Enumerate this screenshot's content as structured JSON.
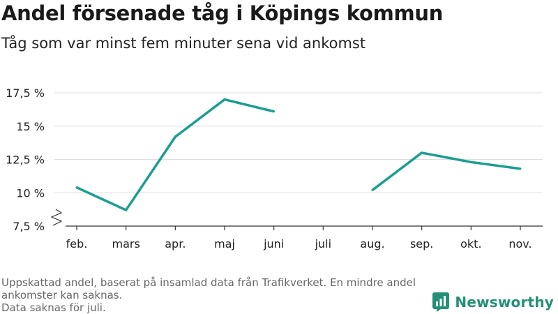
{
  "title": "Andel försenade tåg i Köpings kommun",
  "subtitle": "Tåg som var minst fem minuter sena vid ankomst",
  "footer": {
    "note": "Uppskattad andel, baserat på insamlad data från Trafikverket. En mindre andel ankomster kan saknas.",
    "missing": "Data saknas för juli."
  },
  "brand": {
    "name": "Newsworthy",
    "icon": "newsworthy-logo-icon",
    "color": "#24907a"
  },
  "chart_data": {
    "type": "line",
    "categories": [
      "feb.",
      "mars",
      "apr.",
      "maj",
      "juni",
      "juli",
      "aug.",
      "sep.",
      "okt.",
      "nov."
    ],
    "series": [
      {
        "values": [
          10.4,
          8.7,
          14.2,
          17.0,
          16.1,
          null,
          10.2,
          13.0,
          12.3,
          11.8
        ]
      }
    ],
    "ylim": [
      7.5,
      18.5
    ],
    "y_ticks": [
      {
        "value": 7.5,
        "label": "7,5 %"
      },
      {
        "value": 10,
        "label": "10 %"
      },
      {
        "value": 12.5,
        "label": "12,5 %"
      },
      {
        "value": 15,
        "label": "15 %"
      },
      {
        "value": 17.5,
        "label": "17,5 %"
      }
    ],
    "grid": true,
    "axis_break": true,
    "line_color": "#1a9e8f"
  }
}
